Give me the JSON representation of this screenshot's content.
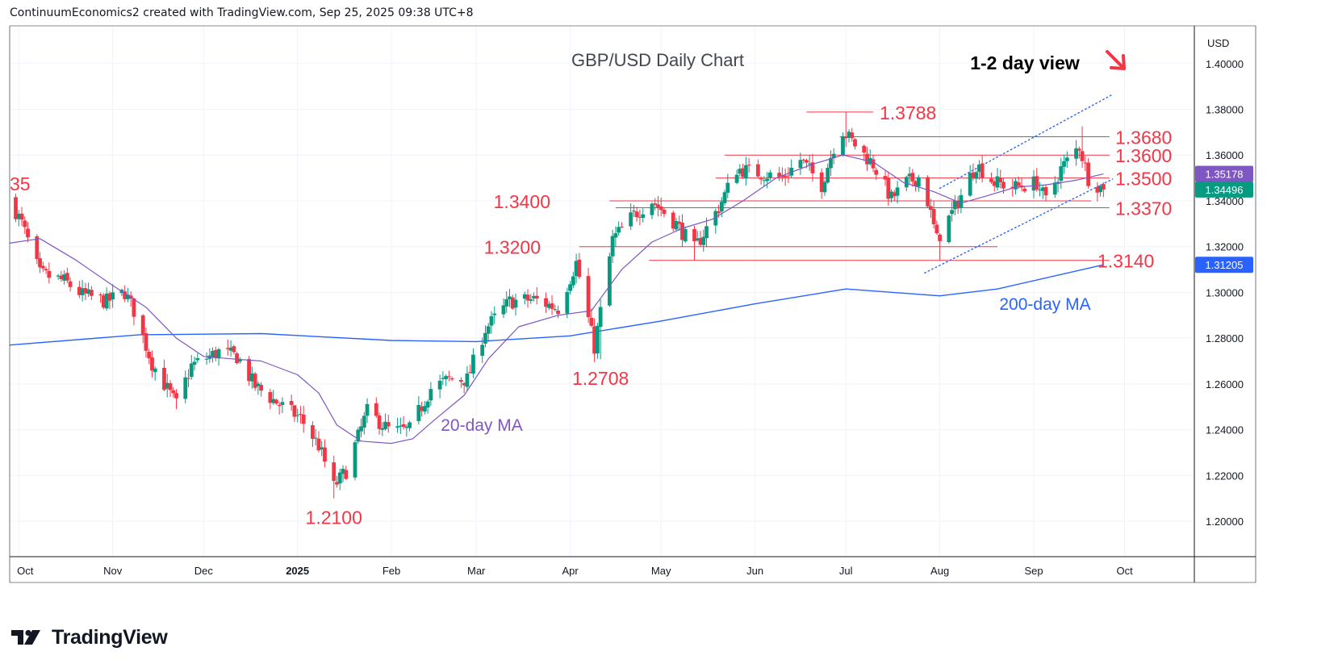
{
  "header": {
    "text": "ContinuumEconomics2 created with TradingView.com, Sep 25, 2025 09:38 UTC+8"
  },
  "footer": {
    "brand": "TradingView"
  },
  "colors": {
    "up": "#089981",
    "down": "#f23645",
    "level": "#f23645",
    "ma20": "#7e57c2",
    "ma200": "#2962ff",
    "grid": "#f0f3fa",
    "axis": "#131722"
  },
  "chart_data": {
    "type": "candlestick",
    "title": "GBP/USD Daily Chart",
    "view": {
      "text": "1-2 day view",
      "icon": "arrow-down-right-icon"
    },
    "currency": "USD",
    "y_range": [
      1.1845,
      1.4165
    ],
    "y_ticks": [
      "1.40000",
      "1.38000",
      "1.36000",
      "1.34000",
      "1.32000",
      "1.30000",
      "1.28000",
      "1.26000",
      "1.24000",
      "1.22000",
      "1.20000"
    ],
    "x_ticks": [
      "Oct",
      "Nov",
      "Dec",
      "2025",
      "Feb",
      "Mar",
      "Apr",
      "May",
      "Jun",
      "Jul",
      "Aug",
      "Sep",
      "Oct"
    ],
    "price_badges": [
      {
        "text": "1.35178",
        "value": 1.35178,
        "color": "#7e57c2"
      },
      {
        "text": "1.34496",
        "value": 1.34496,
        "color": "#089981"
      },
      {
        "text": "1.31205",
        "value": 1.31205,
        "color": "#2962ff"
      }
    ],
    "levels": [
      {
        "label": "1.3788",
        "value": 1.3788,
        "from": "2025-06-18",
        "to": "2025-07-10"
      },
      {
        "label": "1.3680",
        "value": 1.368,
        "from": "2025-06-29",
        "to": "2025-09-26"
      },
      {
        "label": "1.3600",
        "value": 1.36,
        "from": "2025-05-22",
        "to": "2025-09-26"
      },
      {
        "label": "1.3500",
        "value": 1.35,
        "from": "2025-05-19",
        "to": "2025-09-26"
      },
      {
        "label": "1.3400",
        "value": 1.34,
        "from": "2025-04-14",
        "to": "2025-09-20"
      },
      {
        "label": "1.3370",
        "value": 1.337,
        "from": "2025-04-16",
        "to": "2025-09-26"
      },
      {
        "label": "1.3200",
        "value": 1.32,
        "from": "2025-04-04",
        "to": "2025-08-20"
      },
      {
        "label": "1.3140",
        "value": 1.314,
        "from": "2025-04-27",
        "to": "2025-09-26"
      }
    ],
    "left_label": "35",
    "annotations": [
      {
        "text": "1.2708",
        "value": 1.2708,
        "date": "2025-04-11"
      },
      {
        "text": "1.2100",
        "value": 1.21,
        "date": "2025-01-13"
      },
      {
        "text": "20-day MA",
        "series": "ma20"
      },
      {
        "text": "200-day MA",
        "series": "ma200"
      }
    ],
    "channel": {
      "upper": [
        [
          "2025-08-01",
          1.3455
        ],
        [
          "2025-09-27",
          1.3865
        ]
      ],
      "lower": [
        [
          "2025-07-27",
          1.3085
        ],
        [
          "2025-09-27",
          1.3495
        ]
      ]
    },
    "ma200": [
      [
        "2024-09-28",
        1.277
      ],
      [
        "2024-11-10",
        1.2815
      ],
      [
        "2024-12-20",
        1.282
      ],
      [
        "2025-02-01",
        1.279
      ],
      [
        "2025-03-01",
        1.2785
      ],
      [
        "2025-04-01",
        1.281
      ],
      [
        "2025-05-01",
        1.2875
      ],
      [
        "2025-06-01",
        1.295
      ],
      [
        "2025-07-01",
        1.3015
      ],
      [
        "2025-08-01",
        1.2985
      ],
      [
        "2025-08-20",
        1.3015
      ],
      [
        "2025-09-24",
        1.31205
      ]
    ],
    "ma20": [
      [
        "2024-09-28",
        1.3215
      ],
      [
        "2024-10-08",
        1.3235
      ],
      [
        "2024-10-20",
        1.314
      ],
      [
        "2024-11-01",
        1.303
      ],
      [
        "2024-11-12",
        1.2935
      ],
      [
        "2024-11-22",
        1.28
      ],
      [
        "2024-12-01",
        1.272
      ],
      [
        "2024-12-10",
        1.271
      ],
      [
        "2024-12-20",
        1.27
      ],
      [
        "2025-01-01",
        1.264
      ],
      [
        "2025-01-08",
        1.256
      ],
      [
        "2025-01-14",
        1.242
      ],
      [
        "2025-01-22",
        1.235
      ],
      [
        "2025-02-01",
        1.234
      ],
      [
        "2025-02-08",
        1.236
      ],
      [
        "2025-02-15",
        1.244
      ],
      [
        "2025-02-25",
        1.255
      ],
      [
        "2025-03-05",
        1.271
      ],
      [
        "2025-03-15",
        1.285
      ],
      [
        "2025-03-28",
        1.29
      ],
      [
        "2025-04-08",
        1.292
      ],
      [
        "2025-04-18",
        1.31
      ],
      [
        "2025-04-28",
        1.322
      ],
      [
        "2025-05-08",
        1.328
      ],
      [
        "2025-05-18",
        1.332
      ],
      [
        "2025-05-28",
        1.34
      ],
      [
        "2025-06-08",
        1.35
      ],
      [
        "2025-06-20",
        1.356
      ],
      [
        "2025-06-30",
        1.36
      ],
      [
        "2025-07-10",
        1.357
      ],
      [
        "2025-07-20",
        1.348
      ],
      [
        "2025-07-30",
        1.344
      ],
      [
        "2025-08-08",
        1.339
      ],
      [
        "2025-08-16",
        1.342
      ],
      [
        "2025-08-26",
        1.346
      ],
      [
        "2025-09-05",
        1.347
      ],
      [
        "2025-09-15",
        1.349
      ],
      [
        "2025-09-24",
        1.35178
      ]
    ],
    "close_path": [
      [
        "2024-09-28",
        1.341
      ],
      [
        "2024-10-02",
        1.33
      ],
      [
        "2024-10-08",
        1.308
      ],
      [
        "2024-10-16",
        1.305
      ],
      [
        "2024-10-22",
        1.299
      ],
      [
        "2024-10-30",
        1.296
      ],
      [
        "2024-11-05",
        1.3
      ],
      [
        "2024-11-08",
        1.292
      ],
      [
        "2024-11-14",
        1.269
      ],
      [
        "2024-11-22",
        1.251
      ],
      [
        "2024-11-27",
        1.268
      ],
      [
        "2024-12-06",
        1.274
      ],
      [
        "2024-12-12",
        1.272
      ],
      [
        "2024-12-18",
        1.259
      ],
      [
        "2024-12-26",
        1.251
      ],
      [
        "2025-01-02",
        1.245
      ],
      [
        "2025-01-08",
        1.233
      ],
      [
        "2025-01-13",
        1.215
      ],
      [
        "2025-01-17",
        1.222
      ],
      [
        "2025-01-24",
        1.248
      ],
      [
        "2025-02-01",
        1.239
      ],
      [
        "2025-02-07",
        1.24
      ],
      [
        "2025-02-14",
        1.258
      ],
      [
        "2025-02-20",
        1.262
      ],
      [
        "2025-02-26",
        1.262
      ],
      [
        "2025-03-04",
        1.284
      ],
      [
        "2025-03-12",
        1.296
      ],
      [
        "2025-03-20",
        1.297
      ],
      [
        "2025-03-28",
        1.293
      ],
      [
        "2025-04-03",
        1.313
      ],
      [
        "2025-04-09",
        1.276
      ],
      [
        "2025-04-15",
        1.323
      ],
      [
        "2025-04-22",
        1.334
      ],
      [
        "2025-04-28",
        1.34
      ],
      [
        "2025-05-06",
        1.33
      ],
      [
        "2025-05-12",
        1.319
      ],
      [
        "2025-05-20",
        1.337
      ],
      [
        "2025-05-26",
        1.354
      ],
      [
        "2025-06-03",
        1.352
      ],
      [
        "2025-06-10",
        1.35
      ],
      [
        "2025-06-16",
        1.358
      ],
      [
        "2025-06-23",
        1.347
      ],
      [
        "2025-06-29",
        1.372
      ],
      [
        "2025-07-03",
        1.366
      ],
      [
        "2025-07-10",
        1.356
      ],
      [
        "2025-07-16",
        1.341
      ],
      [
        "2025-07-21",
        1.348
      ],
      [
        "2025-07-26",
        1.351
      ],
      [
        "2025-07-31",
        1.323
      ],
      [
        "2025-08-06",
        1.337
      ],
      [
        "2025-08-13",
        1.356
      ],
      [
        "2025-08-19",
        1.348
      ],
      [
        "2025-08-26",
        1.346
      ],
      [
        "2025-09-02",
        1.348
      ],
      [
        "2025-09-05",
        1.34
      ],
      [
        "2025-09-10",
        1.354
      ],
      [
        "2025-09-16",
        1.364
      ],
      [
        "2025-09-19",
        1.35
      ],
      [
        "2025-09-24",
        1.34496
      ]
    ],
    "anchors": [
      [
        "2024-11-22",
        1.249
      ],
      [
        "2024-12-31",
        1.247
      ],
      [
        "2025-01-13",
        1.21
      ],
      [
        "2025-04-11",
        1.2708
      ],
      [
        "2025-05-12",
        1.314
      ],
      [
        "2025-07-01",
        1.3788
      ],
      [
        "2025-08-01",
        1.314
      ],
      [
        "2025-09-17",
        1.3726
      ]
    ]
  }
}
